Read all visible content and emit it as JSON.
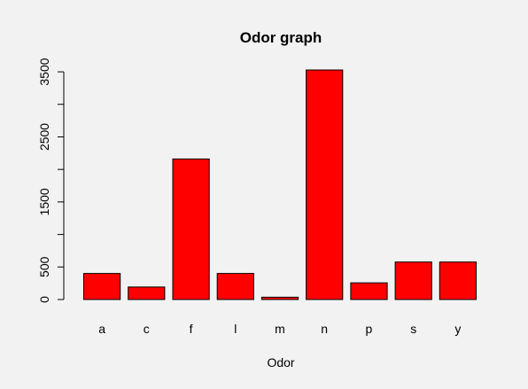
{
  "chart_data": {
    "type": "bar",
    "title": "Odor graph",
    "xlabel": "Odor",
    "ylabel": "",
    "categories": [
      "a",
      "c",
      "f",
      "l",
      "m",
      "n",
      "p",
      "s",
      "y"
    ],
    "values": [
      400,
      192,
      2160,
      400,
      36,
      3528,
      256,
      576,
      576
    ],
    "ylim": [
      0,
      3528
    ],
    "yticks": [
      0,
      500,
      1000,
      1500,
      2000,
      2500,
      3000,
      3500
    ],
    "ytick_labels": [
      "0",
      "500",
      "",
      "1500",
      "",
      "2500",
      "",
      "3500"
    ],
    "bar_color": "#ff0000",
    "grid": false,
    "legend": "none"
  }
}
